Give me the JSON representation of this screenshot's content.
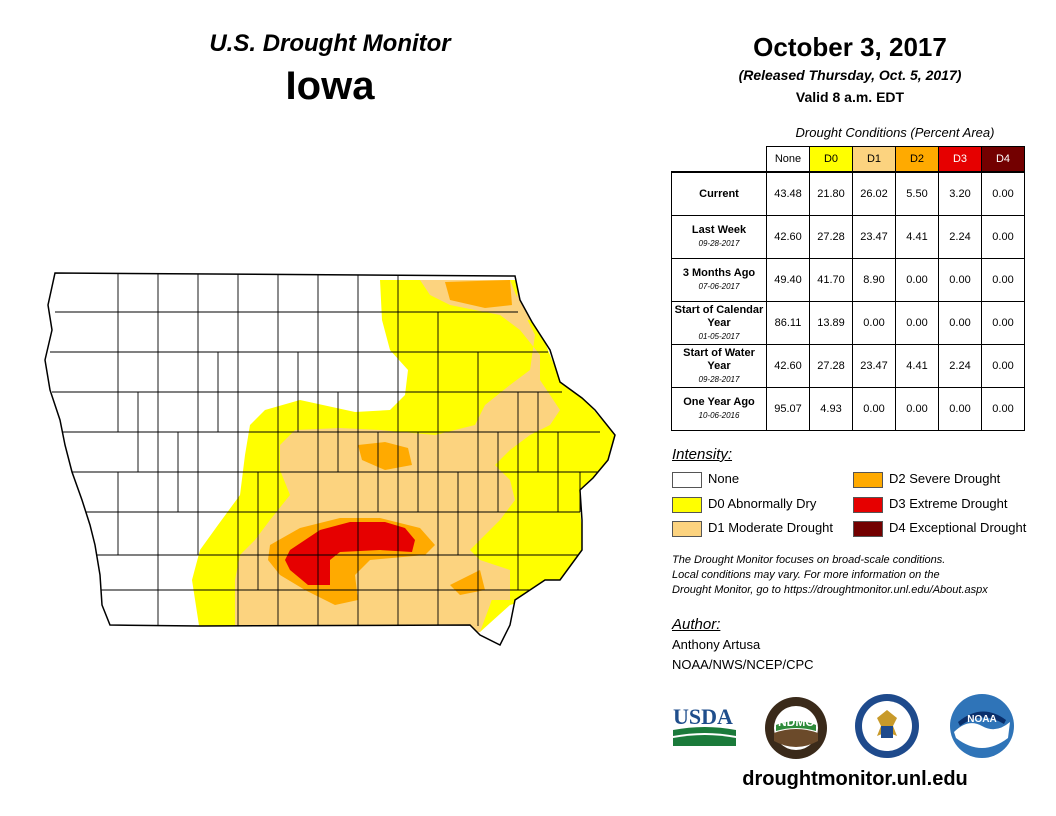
{
  "header": {
    "subtitle": "U.S. Drought Monitor",
    "state": "Iowa"
  },
  "date_block": {
    "date": "October 3, 2017",
    "released": "(Released Thursday, Oct. 5, 2017)",
    "valid": "Valid 8 a.m. EDT"
  },
  "table": {
    "caption": "Drought Conditions (Percent Area)",
    "columns": [
      "None",
      "D0",
      "D1",
      "D2",
      "D3",
      "D4"
    ],
    "rows": [
      {
        "label": "Current",
        "date": "",
        "values": [
          "43.48",
          "21.80",
          "26.02",
          "5.50",
          "3.20",
          "0.00"
        ]
      },
      {
        "label": "Last Week",
        "date": "09-28-2017",
        "values": [
          "42.60",
          "27.28",
          "23.47",
          "4.41",
          "2.24",
          "0.00"
        ]
      },
      {
        "label": "3 Months Ago",
        "date": "07-06-2017",
        "values": [
          "49.40",
          "41.70",
          "8.90",
          "0.00",
          "0.00",
          "0.00"
        ]
      },
      {
        "label": "Start of Calendar Year",
        "date": "01-05-2017",
        "values": [
          "86.11",
          "13.89",
          "0.00",
          "0.00",
          "0.00",
          "0.00"
        ]
      },
      {
        "label": "Start of Water Year",
        "date": "09-28-2017",
        "values": [
          "42.60",
          "27.28",
          "23.47",
          "4.41",
          "2.24",
          "0.00"
        ]
      },
      {
        "label": "One Year Ago",
        "date": "10-06-2016",
        "values": [
          "95.07",
          "4.93",
          "0.00",
          "0.00",
          "0.00",
          "0.00"
        ]
      }
    ]
  },
  "legend": {
    "title": "Intensity:",
    "items": [
      {
        "label": "None",
        "color": "#ffffff"
      },
      {
        "label": "D0 Abnormally Dry",
        "color": "#ffff00"
      },
      {
        "label": "D1 Moderate Drought",
        "color": "#fcd37f"
      },
      {
        "label": "D2 Severe Drought",
        "color": "#ffaa00"
      },
      {
        "label": "D3 Extreme Drought",
        "color": "#e60000"
      },
      {
        "label": "D4 Exceptional Drought",
        "color": "#730000"
      }
    ]
  },
  "note": {
    "line1": "The Drought Monitor focuses on broad-scale conditions.",
    "line2": "Local conditions may vary. For more information on the",
    "line3": "Drought Monitor, go to https://droughtmonitor.unl.edu/About.aspx"
  },
  "author": {
    "title": "Author:",
    "name": "Anthony Artusa",
    "org": "NOAA/NWS/NCEP/CPC"
  },
  "logos": {
    "usda": "USDA",
    "ndmc": "NDMC",
    "noaa": "NOAA"
  },
  "url": "droughtmonitor.unl.edu"
}
